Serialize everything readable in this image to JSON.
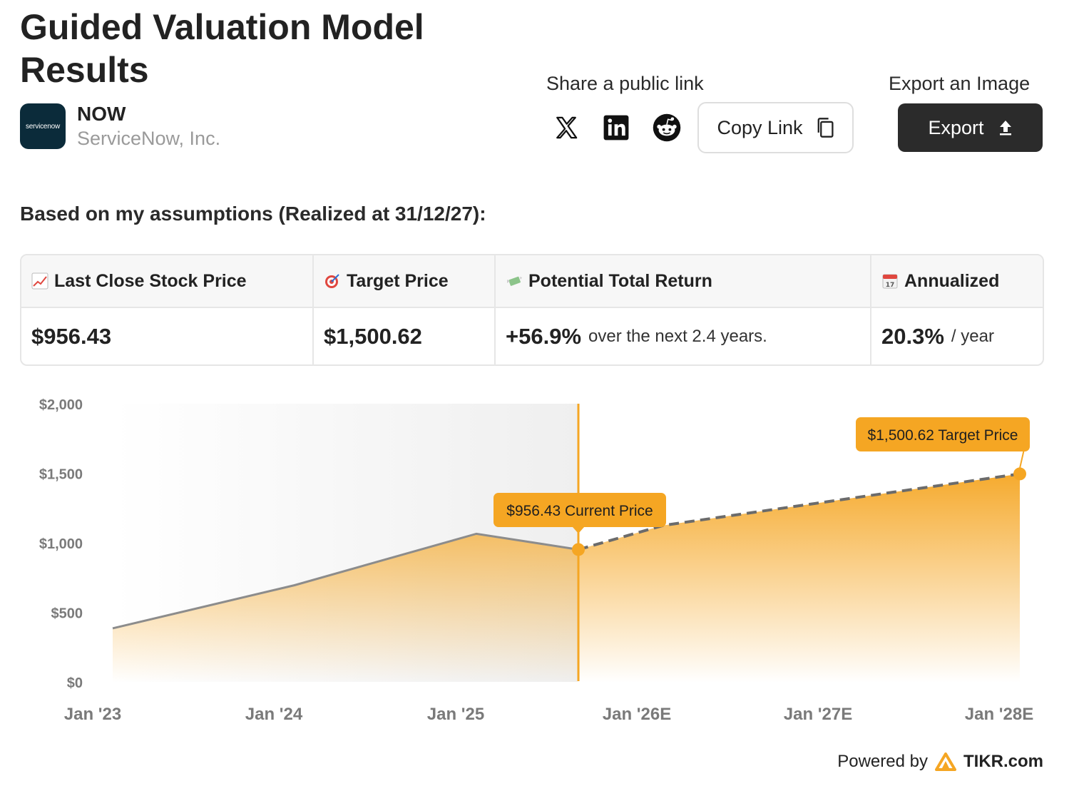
{
  "header": {
    "title": "Guided Valuation Model Results",
    "ticker": "NOW",
    "company_name": "ServiceNow, Inc.",
    "logo_text": "servicenow"
  },
  "share": {
    "label": "Share a public link",
    "copy_link_label": "Copy Link",
    "socials": [
      "x-icon",
      "linkedin-icon",
      "reddit-icon"
    ]
  },
  "export": {
    "label": "Export an Image",
    "button_label": "Export"
  },
  "assumptions_heading": "Based on my assumptions (Realized at 31/12/27):",
  "metrics": [
    {
      "label": "Last Close Stock Price",
      "icon": "chart-up-emoji",
      "value": "$956.43",
      "suffix": ""
    },
    {
      "label": "Target Price",
      "icon": "target-emoji",
      "value": "$1,500.62",
      "suffix": ""
    },
    {
      "label": "Potential Total Return",
      "icon": "money-wings-emoji",
      "value": "+56.9%",
      "suffix": "over the next 2.4 years."
    },
    {
      "label": "Annualized",
      "icon": "calendar-emoji",
      "value": "20.3%",
      "suffix": "/ year"
    }
  ],
  "chart_data": {
    "type": "area",
    "y_ticks": [
      "$0",
      "$500",
      "$1,000",
      "$1,500",
      "$2,000"
    ],
    "ylim": [
      0,
      2000
    ],
    "x_ticks": [
      "Jan '23",
      "Jan '24",
      "Jan '25",
      "Jan '26E",
      "Jan '27E",
      "Jan '28E"
    ],
    "historical": [
      {
        "x": "Jan '23",
        "y": 390
      },
      {
        "x": "Jan '24",
        "y": 700
      },
      {
        "x": "Mar '25",
        "y": 1070
      },
      {
        "x": "Sep '25",
        "y": 956.43
      }
    ],
    "projected": [
      {
        "x": "Sep '25",
        "y": 956.43
      },
      {
        "x": "Jan '26E",
        "y": 1130
      },
      {
        "x": "Jan '28E",
        "y": 1500.62
      }
    ],
    "current_label": "$956.43 Current Price",
    "target_label": "$1,500.62 Target Price",
    "colors": {
      "accent": "#f5a623",
      "line": "#8c8c8c",
      "dash": "#6b6b6b"
    }
  },
  "footer": {
    "powered_by": "Powered by",
    "brand": "TIKR.com"
  }
}
